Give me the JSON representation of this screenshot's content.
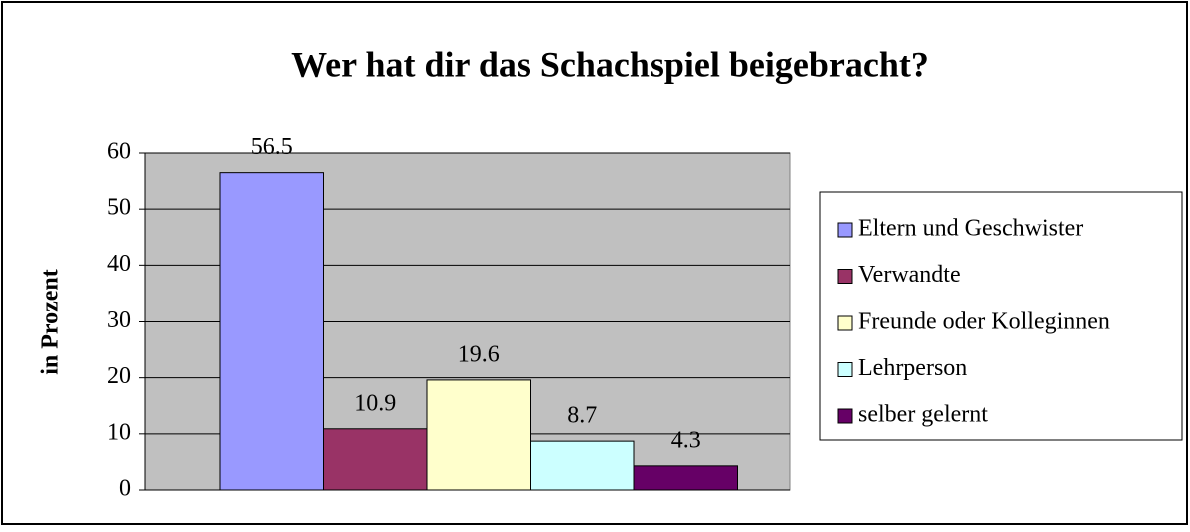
{
  "chart_data": {
    "type": "bar",
    "title": "Wer hat dir das Schachspiel beigebracht?",
    "ylabel": "in Prozent",
    "categories": [
      null
    ],
    "series": [
      {
        "name": "Eltern und Geschwister",
        "color": "#9999ff",
        "values": [
          56.5
        ]
      },
      {
        "name": "Verwandte",
        "color": "#993366",
        "values": [
          10.9
        ]
      },
      {
        "name": "Freunde oder Kolleginnen",
        "color": "#ffffcc",
        "values": [
          19.6
        ]
      },
      {
        "name": "Lehrperson",
        "color": "#ccffff",
        "values": [
          8.7
        ]
      },
      {
        "name": "selber gelernt",
        "color": "#660066",
        "values": [
          4.3
        ]
      }
    ],
    "ylim": [
      0,
      60
    ],
    "yticks": [
      0,
      10,
      20,
      30,
      40,
      50,
      60
    ],
    "grid": true,
    "legend": "right"
  }
}
